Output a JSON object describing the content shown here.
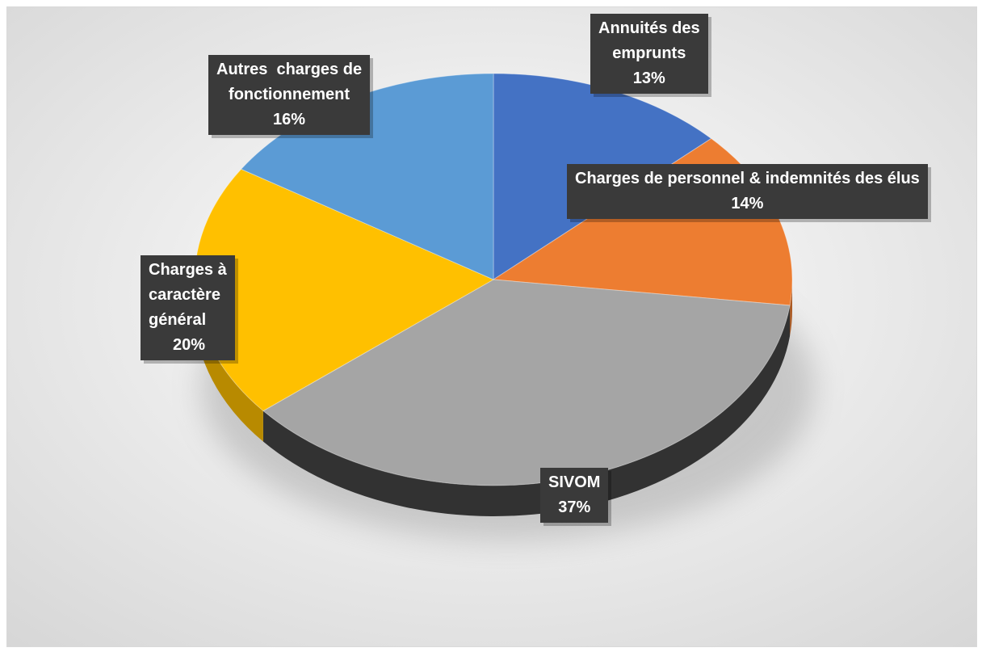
{
  "chart_data": {
    "type": "pie",
    "title": "",
    "slices": [
      {
        "label": "Annuités des emprunts",
        "label_lines": [
          "Annuités des",
          "emprunts"
        ],
        "value_text": "13%",
        "value": 13,
        "color": "#4472C4"
      },
      {
        "label": "Charges de personnel & indemnités des élus",
        "label_lines": [
          "Charges de personnel & indemnités des élus"
        ],
        "value_text": "14%",
        "value": 14,
        "color": "#ED7D31"
      },
      {
        "label": "SIVOM",
        "label_lines": [
          "SIVOM"
        ],
        "value_text": "37%",
        "value": 37,
        "color": "#A5A5A5"
      },
      {
        "label": "Charges à caractère général",
        "label_lines": [
          "Charges à",
          "caractère",
          "général"
        ],
        "value_text": "20%",
        "value": 20,
        "color": "#FFC000"
      },
      {
        "label": "Autres charges de fonctionnement",
        "label_lines": [
          "Autres  charges de",
          "fonctionnement"
        ],
        "value_text": "16%",
        "value": 16,
        "color": "#5B9BD5"
      }
    ],
    "legend": "none",
    "style": "3d-pie"
  }
}
